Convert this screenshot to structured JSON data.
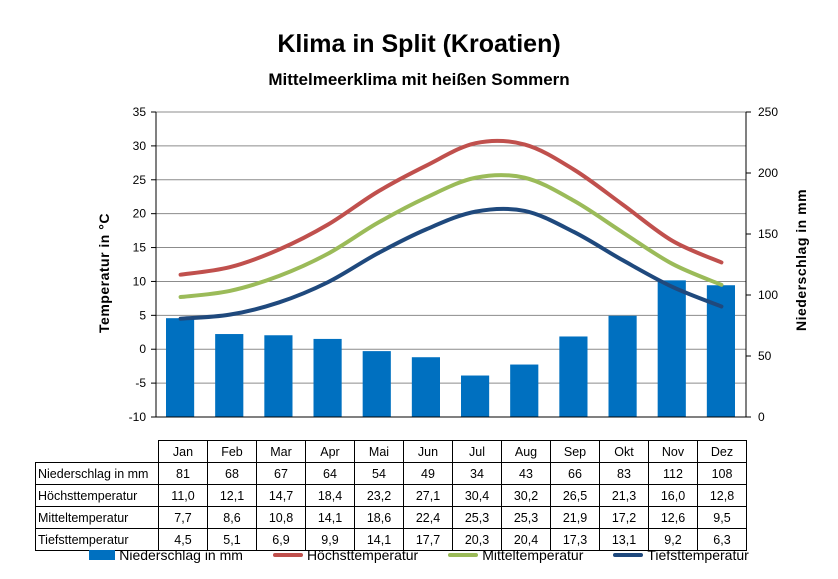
{
  "chart_data": {
    "type": "bar+line",
    "title": "Klima in Split (Kroatien)",
    "subtitle": "Mittelmeerklima mit heißen Sommern",
    "categories": [
      "Jan",
      "Feb",
      "Mar",
      "Apr",
      "Mai",
      "Jun",
      "Jul",
      "Aug",
      "Sep",
      "Okt",
      "Nov",
      "Dez"
    ],
    "y_left": {
      "label": "Temperatur  in  °C",
      "range": [
        -10,
        35
      ],
      "ticks": [
        "35",
        "30",
        "25",
        "20",
        "15",
        "10",
        "5",
        "0",
        "-5",
        "-10"
      ]
    },
    "y_right": {
      "label": "Niederschlag  in  mm",
      "range": [
        0,
        250
      ],
      "ticks": [
        "250",
        "200",
        "150",
        "100",
        "50",
        "0"
      ]
    },
    "series": [
      {
        "name": "Niederschlag in mm",
        "axis": "right",
        "kind": "bar",
        "color": "#0070c0",
        "values": [
          81,
          68,
          67,
          64,
          54,
          49,
          34,
          43,
          66,
          83,
          112,
          108
        ],
        "labels": [
          "81",
          "68",
          "67",
          "64",
          "54",
          "49",
          "34",
          "43",
          "66",
          "83",
          "112",
          "108"
        ]
      },
      {
        "name": "Höchsttemperatur",
        "axis": "left",
        "kind": "line",
        "color": "#c0504d",
        "values": [
          11.0,
          12.1,
          14.7,
          18.4,
          23.2,
          27.1,
          30.4,
          30.2,
          26.5,
          21.3,
          16.0,
          12.8
        ],
        "labels": [
          "11,0",
          "12,1",
          "14,7",
          "18,4",
          "23,2",
          "27,1",
          "30,4",
          "30,2",
          "26,5",
          "21,3",
          "16,0",
          "12,8"
        ]
      },
      {
        "name": "Mitteltemperatur",
        "axis": "left",
        "kind": "line",
        "color": "#9bbb59",
        "values": [
          7.7,
          8.6,
          10.8,
          14.1,
          18.6,
          22.4,
          25.3,
          25.3,
          21.9,
          17.2,
          12.6,
          9.5
        ],
        "labels": [
          "7,7",
          "8,6",
          "10,8",
          "14,1",
          "18,6",
          "22,4",
          "25,3",
          "25,3",
          "21,9",
          "17,2",
          "12,6",
          "9,5"
        ]
      },
      {
        "name": "Tiefsttemperatur",
        "axis": "left",
        "kind": "line",
        "color": "#1f497d",
        "values": [
          4.5,
          5.1,
          6.9,
          9.9,
          14.1,
          17.7,
          20.3,
          20.4,
          17.3,
          13.1,
          9.2,
          6.3
        ],
        "labels": [
          "4,5",
          "5,1",
          "6,9",
          "9,9",
          "14,1",
          "17,7",
          "20,3",
          "20,4",
          "17,3",
          "13,1",
          "9,2",
          "6,3"
        ]
      }
    ],
    "legend": "bottom",
    "grid": true
  }
}
